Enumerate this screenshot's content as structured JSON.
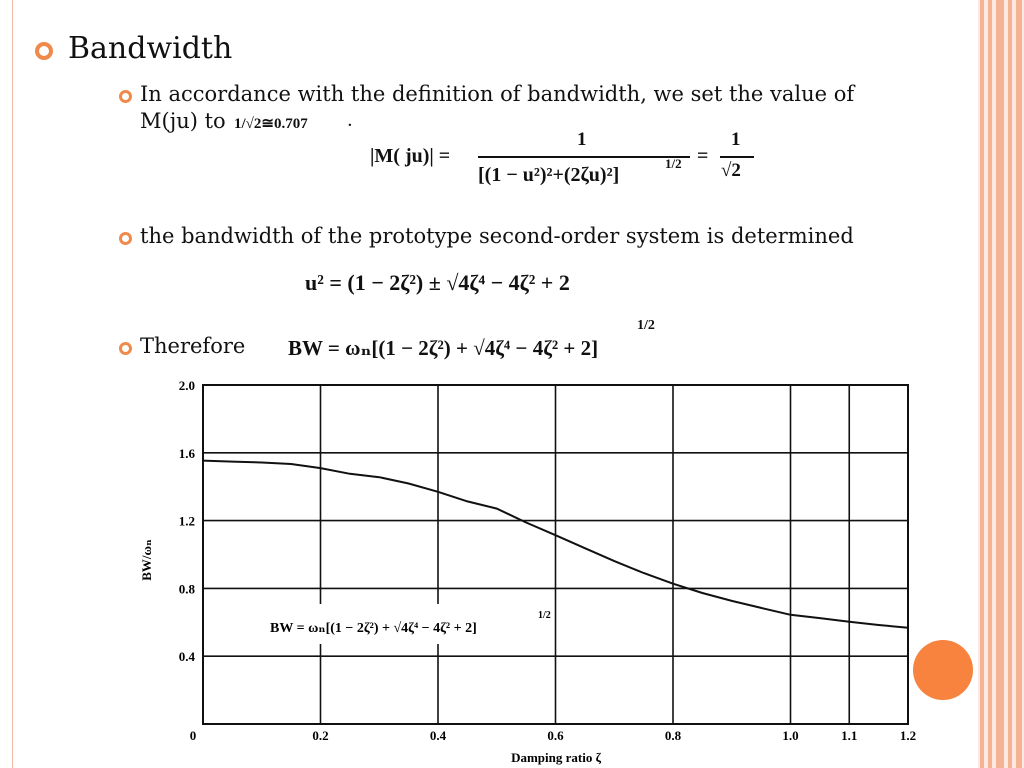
{
  "slide": {
    "title": "Bandwidth",
    "bullet1_line1": "In accordance with the definition of bandwidth, we set the value of",
    "bullet1_line2": "M(ju) to",
    "bullet1_value": "1/√2≅0.707",
    "bullet1_dot": ".",
    "eq1_lhs": "|M( ju)| =",
    "eq1_num": "1",
    "eq1_den": "[(1 − u²)²+(2ζu)²]",
    "eq1_exp": "1/2",
    "eq1_rhs_num": "1",
    "eq1_rhs_den": "√2",
    "bullet2": "the bandwidth of the prototype second-order system is determined",
    "eq2": "u² = (1 − 2ζ²) ± √4ζ⁴ − 4ζ² + 2",
    "bullet3": "Therefore",
    "eq3": "BW = ωₙ[(1 − 2ζ²) + √4ζ⁴ − 4ζ² + 2]",
    "eq3_exp": "1/2"
  },
  "colors": {
    "accent": "#ef8a4b",
    "stripe": "#f4b393",
    "stripe_bg": "#fde9e1",
    "orange_circle": "#f7833f"
  },
  "chart_data": {
    "type": "line",
    "xlabel": "Damping ratio ζ",
    "ylabel": "BW/ωₙ",
    "xlim": [
      0,
      1.2
    ],
    "ylim": [
      0,
      2.0
    ],
    "x_ticks": [
      0,
      0.2,
      0.4,
      0.6,
      0.8,
      1.0,
      1.1,
      1.2
    ],
    "x_tick_labels": [
      "0",
      "0.2",
      "0.4",
      "0.6",
      "0.8",
      "1.0",
      "1.1",
      "1.2"
    ],
    "y_ticks": [
      0,
      0.4,
      0.8,
      1.2,
      1.6,
      2.0
    ],
    "y_tick_labels": [
      "0",
      "0.4",
      "0.8",
      "1.2",
      "1.6",
      "2.0"
    ],
    "grid": true,
    "annotation": "BW = ωₙ[(1 − 2ζ²) + √4ζ⁴ − 4ζ² + 2]",
    "annotation_exp": "1/2",
    "series": [
      {
        "x": [
          0,
          0.05,
          0.1,
          0.15,
          0.2,
          0.25,
          0.3,
          0.35,
          0.4,
          0.45,
          0.5,
          0.55,
          0.6,
          0.65,
          0.7,
          0.75,
          0.8,
          0.85,
          0.9,
          0.95,
          1.0,
          1.05,
          1.1,
          1.15,
          1.2
        ],
        "values": [
          1.554,
          1.548,
          1.543,
          1.534,
          1.51,
          1.476,
          1.456,
          1.419,
          1.37,
          1.313,
          1.271,
          1.189,
          1.114,
          1.037,
          0.961,
          0.891,
          0.828,
          0.773,
          0.726,
          0.685,
          0.644,
          0.625,
          0.603,
          0.584,
          0.568
        ]
      }
    ]
  }
}
